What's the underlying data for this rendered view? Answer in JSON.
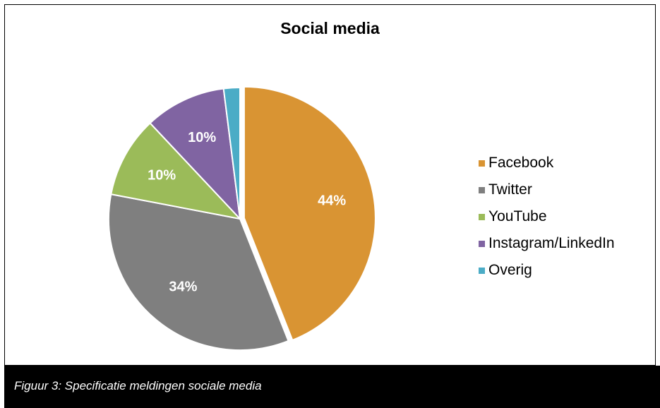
{
  "chart_data": {
    "type": "pie",
    "title": "Social media",
    "categories": [
      "Facebook",
      "Twitter",
      "YouTube",
      "Instagram/LinkedIn",
      "Overig"
    ],
    "values": [
      44,
      34,
      10,
      10,
      2
    ],
    "labels": [
      "44%",
      "34%",
      "10%",
      "10%",
      ""
    ],
    "colors": [
      "#D99433",
      "#7F7F7F",
      "#9BBB59",
      "#8064A2",
      "#4BACC6"
    ],
    "legend_position": "right"
  },
  "caption": "Figuur 3: Specificatie meldingen sociale media"
}
